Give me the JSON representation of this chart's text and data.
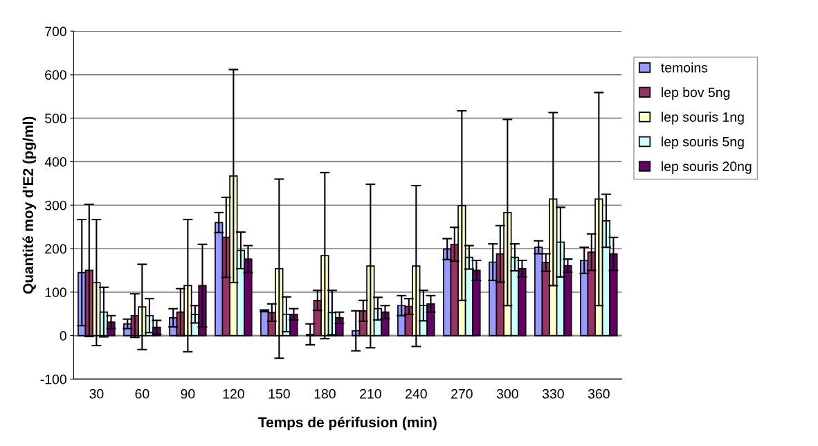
{
  "chart_data": {
    "type": "bar",
    "xlabel": "Temps de périfusion (min)",
    "ylabel": "Quantité moy d'E2 (pg/ml)",
    "categories": [
      "30",
      "60",
      "90",
      "120",
      "150",
      "180",
      "210",
      "240",
      "270",
      "300",
      "330",
      "360"
    ],
    "series": [
      {
        "name": "temoins",
        "color": "#9999ff",
        "values": [
          145,
          27,
          41,
          260,
          57,
          3,
          11,
          69,
          199,
          169,
          203,
          173
        ],
        "errors": [
          122,
          11,
          21,
          23,
          2,
          24,
          46,
          23,
          24,
          42,
          15,
          30
        ]
      },
      {
        "name": "lep bov 5ng",
        "color": "#993366",
        "values": [
          150,
          46,
          54,
          226,
          53,
          81,
          57,
          67,
          210,
          188,
          168,
          192
        ],
        "errors": [
          152,
          50,
          54,
          92,
          20,
          23,
          24,
          18,
          39,
          65,
          20,
          42
        ]
      },
      {
        "name": "lep souris 1ng",
        "color": "#ffffcc",
        "values": [
          122,
          66,
          115,
          367,
          154,
          184,
          160,
          160,
          299,
          283,
          314,
          314
        ],
        "errors": [
          145,
          98,
          152,
          245,
          206,
          191,
          188,
          185,
          218,
          214,
          199,
          245
        ]
      },
      {
        "name": "lep souris 5ng",
        "color": "#ccffff",
        "values": [
          54,
          46,
          49,
          196,
          49,
          53,
          62,
          69,
          180,
          180,
          215,
          264
        ],
        "errors": [
          57,
          39,
          20,
          42,
          40,
          51,
          26,
          35,
          27,
          31,
          80,
          61
        ]
      },
      {
        "name": "lep souris 20ng",
        "color": "#660066",
        "values": [
          31,
          19,
          115,
          176,
          49,
          41,
          54,
          73,
          150,
          154,
          161,
          188
        ],
        "errors": [
          15,
          16,
          95,
          31,
          13,
          13,
          15,
          19,
          23,
          19,
          15,
          38
        ]
      }
    ],
    "ylim": [
      -100,
      700
    ],
    "yticks": [
      -100,
      0,
      100,
      200,
      300,
      400,
      500,
      600,
      700
    ],
    "grid": "y",
    "legend": "right"
  }
}
